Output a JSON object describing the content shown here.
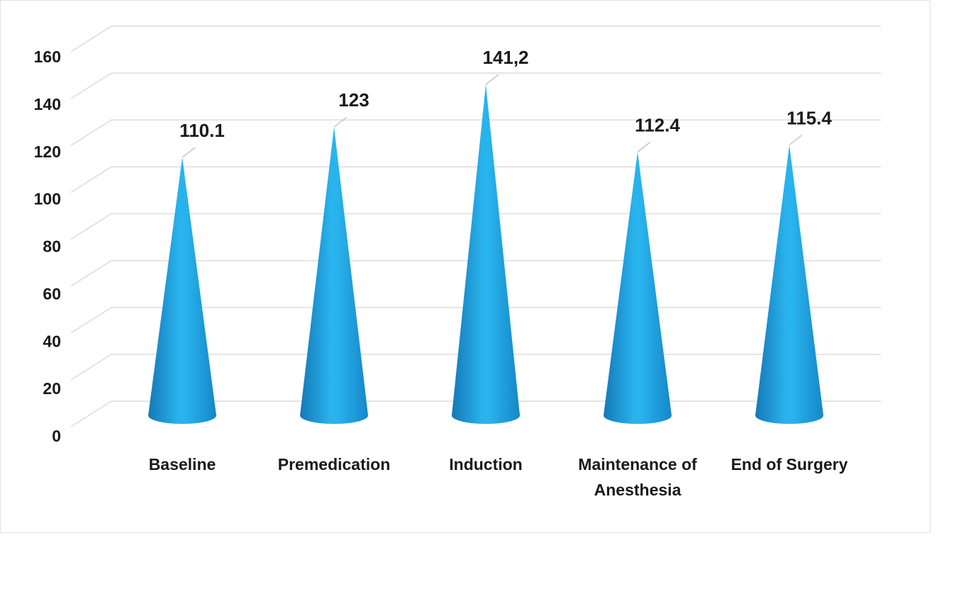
{
  "chart_data": {
    "type": "cone",
    "categories": [
      "Baseline",
      "Premedication",
      "Induction",
      "Maintenance of Anesthesia",
      "End of Surgery"
    ],
    "values": [
      110.1,
      123,
      141.2,
      112.4,
      115.4
    ],
    "value_labels": [
      "110.1",
      "123",
      "141,2",
      "112.4",
      "115.4"
    ],
    "color": "#29b3ec",
    "ylim": [
      0,
      160
    ],
    "yticks": [
      0,
      20,
      40,
      60,
      80,
      100,
      120,
      140,
      160
    ],
    "grid": true
  }
}
